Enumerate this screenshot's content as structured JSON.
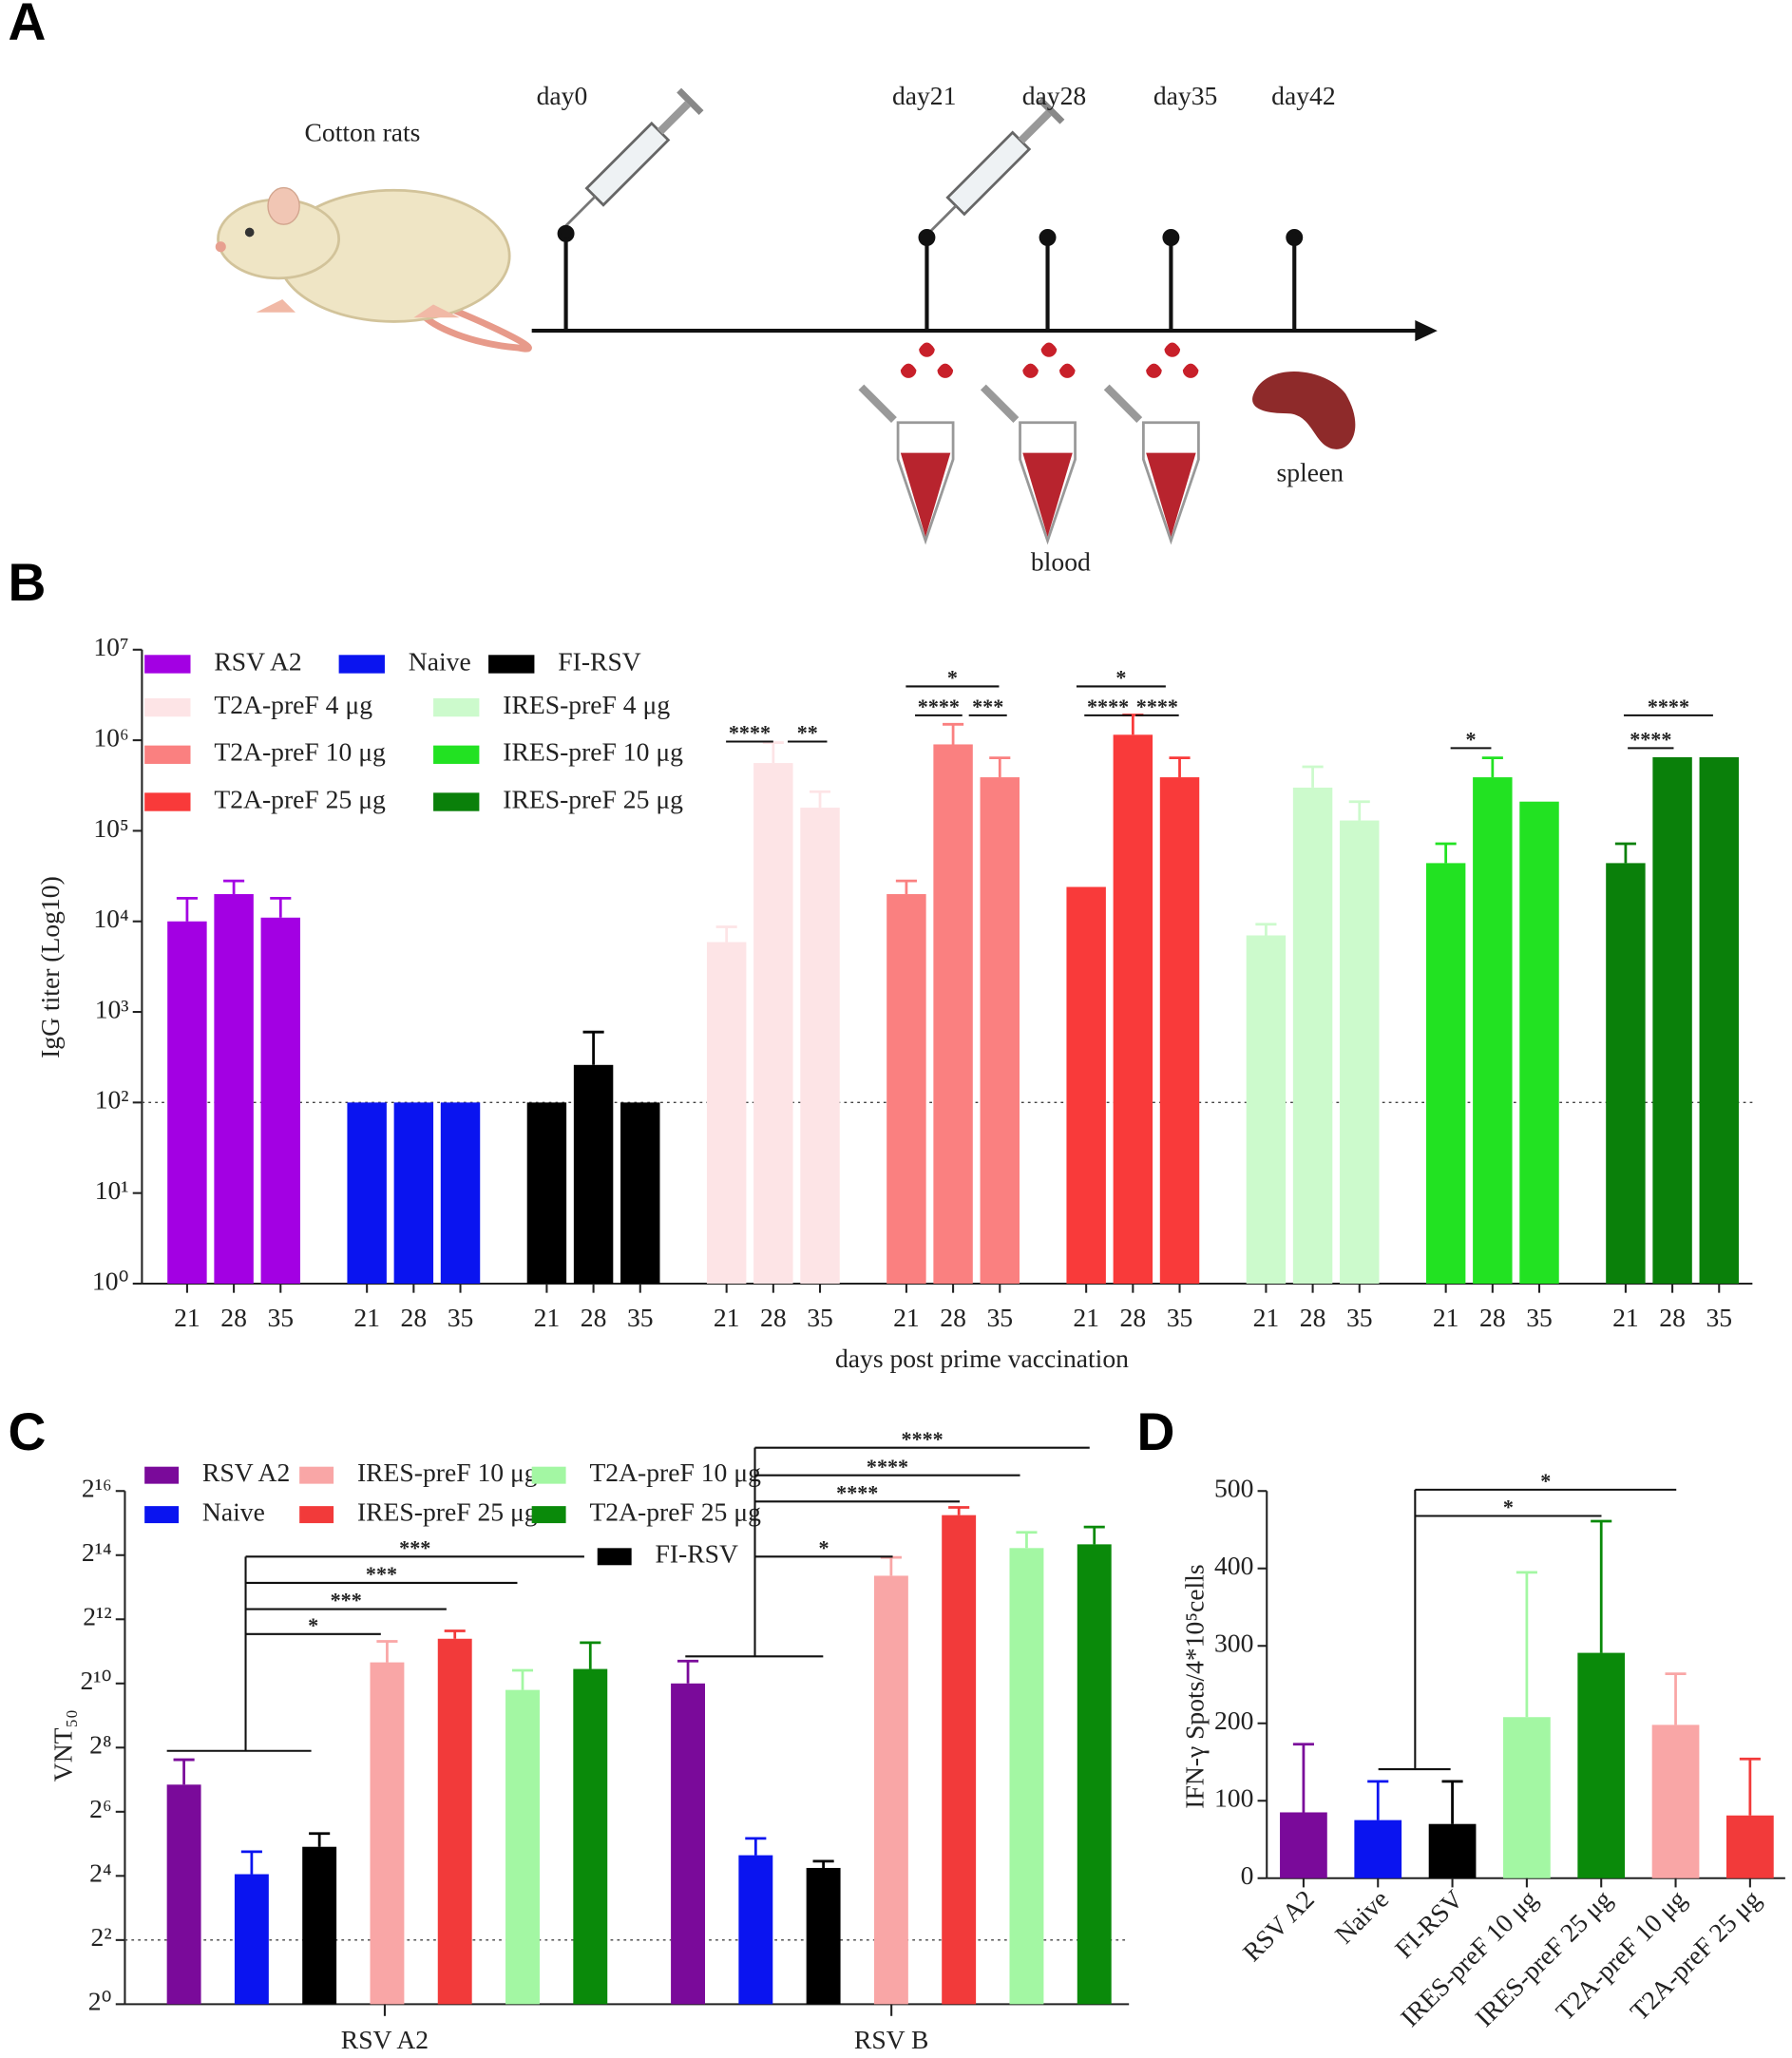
{
  "panel_labels": [
    "A",
    "B",
    "C",
    "D"
  ],
  "diagram": {
    "animal_label": "Cotton rats",
    "timepoints": [
      "day0",
      "day21",
      "day28",
      "day35",
      "day42"
    ],
    "sample_labels": [
      "blood",
      "spleen"
    ]
  },
  "chart_data": [
    {
      "type": "bar",
      "y_label": "IgG titer (Log10)",
      "x_label": "days post prime vaccination",
      "categories": [
        "21",
        "28",
        "35"
      ],
      "log_scale": true,
      "ylim": [
        1,
        10000000
      ],
      "yticks": [
        {
          "value": 1,
          "label": "10⁰"
        },
        {
          "value": 10,
          "label": "10¹"
        },
        {
          "value": 100,
          "label": "10²"
        },
        {
          "value": 1000,
          "label": "10³"
        },
        {
          "value": 10000,
          "label": "10⁴"
        },
        {
          "value": 100000,
          "label": "10⁵"
        },
        {
          "value": 1000000,
          "label": "10⁶"
        },
        {
          "value": 10000000,
          "label": "10⁷"
        }
      ],
      "reference_line": 100,
      "series": [
        {
          "name": "RSV A2",
          "color": "#a300e3",
          "values": [
            10000,
            20000,
            11000
          ],
          "errors": [
            8000,
            8000,
            7000
          ]
        },
        {
          "name": "Naive",
          "color": "#0a14f0",
          "values": [
            100,
            100,
            100
          ],
          "errors": [
            null,
            null,
            null
          ]
        },
        {
          "name": "FI-RSV",
          "color": "#000000",
          "values": [
            100,
            260,
            100
          ],
          "errors": [
            null,
            340,
            null
          ]
        },
        {
          "name": "T2A-preF 4 μg",
          "color": "#fde4e6",
          "values": [
            5900,
            560000,
            180000
          ],
          "errors": [
            2800,
            380000,
            90000
          ]
        },
        {
          "name": "T2A-preF 10 μg",
          "color": "#fa8080",
          "values": [
            20000,
            900000,
            390000
          ],
          "errors": [
            8000,
            600000,
            250000
          ]
        },
        {
          "name": "T2A-preF 25 μg",
          "color": "#f93a3a",
          "values": [
            24000,
            1150000,
            390000
          ],
          "errors": [
            null,
            750000,
            250000
          ]
        },
        {
          "name": "IRES-preF 4 μg",
          "color": "#ccfacc",
          "values": [
            7000,
            300000,
            130000
          ],
          "errors": [
            2300,
            210000,
            80000
          ]
        },
        {
          "name": "IRES-preF 10 μg",
          "color": "#22e222",
          "values": [
            44000,
            390000,
            210000
          ],
          "errors": [
            28000,
            250000,
            null
          ]
        },
        {
          "name": "IRES-preF 25 μg",
          "color": "#0a800a",
          "values": [
            44000,
            650000,
            650000
          ],
          "errors": [
            28000,
            null,
            null
          ]
        }
      ],
      "significance": [
        "****",
        "**",
        "*",
        "****",
        "***",
        "*",
        "****",
        "****",
        "*",
        "****",
        "****"
      ]
    },
    {
      "type": "bar",
      "y_label": "VNT₅₀",
      "categories": [
        "RSV A2",
        "RSV B"
      ],
      "log_scale": true,
      "ylim": [
        1,
        65536
      ],
      "yticks": [
        {
          "value": 1,
          "label": "2⁰"
        },
        {
          "value": 4,
          "label": "2²"
        },
        {
          "value": 16,
          "label": "2⁴"
        },
        {
          "value": 64,
          "label": "2⁶"
        },
        {
          "value": 256,
          "label": "2⁸"
        },
        {
          "value": 1024,
          "label": "2¹⁰"
        },
        {
          "value": 4096,
          "label": "2¹²"
        },
        {
          "value": 16384,
          "label": "2¹⁴"
        },
        {
          "value": 65536,
          "label": "2¹⁶"
        }
      ],
      "reference_line": 4,
      "series": [
        {
          "name": "RSV A2",
          "color": "#7a0a9a",
          "values": [
            115,
            1024
          ],
          "errors": [
            82,
            636
          ]
        },
        {
          "name": "Naive",
          "color": "#0a14f0",
          "values": [
            16.6,
            25
          ],
          "errors": [
            10.4,
            11
          ]
        },
        {
          "name": "FI-RSV",
          "color": "#000000",
          "values": [
            30,
            19
          ],
          "errors": [
            10,
            3
          ]
        },
        {
          "name": "IRES-preF 10 μg",
          "color": "#f9a6a6",
          "values": [
            1615,
            10500
          ],
          "errors": [
            925,
            5100
          ]
        },
        {
          "name": "IRES-preF 25 μg",
          "color": "#f23a3a",
          "values": [
            2690,
            38900
          ],
          "errors": [
            500,
            7100
          ]
        },
        {
          "name": "T2A-preF 10 μg",
          "color": "#a3f7a3",
          "values": [
            890,
            19100
          ],
          "errors": [
            470,
            7700
          ]
        },
        {
          "name": "T2A-preF 25 μg",
          "color": "#0a8a0a",
          "values": [
            1400,
            20700
          ],
          "errors": [
            1070,
            9400
          ]
        }
      ],
      "significance": [
        "*",
        "***",
        "***",
        "***",
        "*",
        "****",
        "****",
        "****"
      ]
    },
    {
      "type": "bar",
      "y_label": "IFN-γ Spots/4*10⁵cells",
      "categories": [
        "RSV A2",
        "Naive",
        "FI-RSV",
        "IRES-preF 10 μg",
        "IRES-preF 25 μg",
        "T2A-preF 10 μg",
        "T2A-preF 25 μg"
      ],
      "colors": [
        "#7a0a9a",
        "#0a14f0",
        "#000000",
        "#a3f7a3",
        "#0a8a0a",
        "#f9a6a6",
        "#f23a3a"
      ],
      "values": [
        85,
        75,
        70,
        208,
        291,
        198,
        81
      ],
      "errors": [
        88,
        50,
        55,
        187,
        170,
        66,
        73
      ],
      "ylim": [
        0,
        500
      ],
      "yticks": [
        0,
        100,
        200,
        300,
        400,
        500
      ],
      "significance": [
        "*",
        "*"
      ]
    }
  ]
}
